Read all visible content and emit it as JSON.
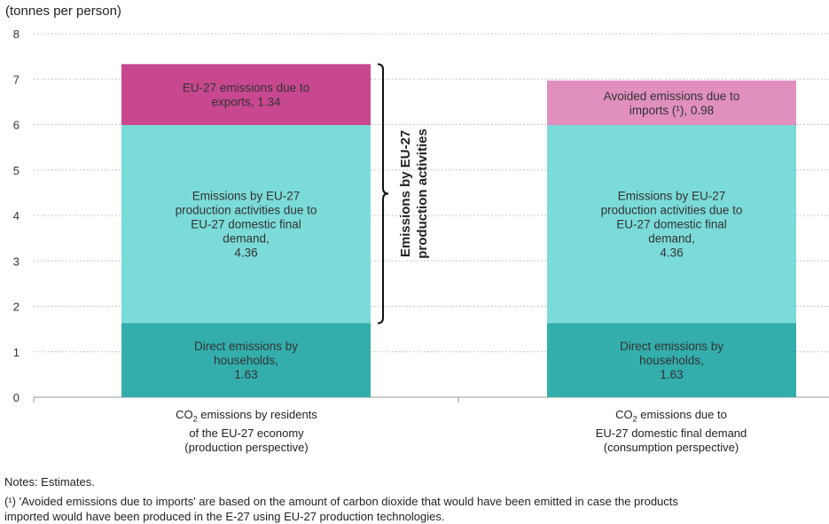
{
  "chart_data": {
    "type": "bar",
    "stacked": true,
    "ylabel": "(tonnes per person)",
    "ylim": [
      0,
      8
    ],
    "yticks": [
      0,
      1,
      2,
      3,
      4,
      5,
      6,
      7,
      8
    ],
    "grid": true,
    "categories": [
      {
        "pre": "CO",
        "sub": "2",
        "lines": [
          " emissions by residents",
          "of the EU-27 economy",
          "(production perspective)"
        ]
      },
      {
        "pre": "CO",
        "sub": "2",
        "lines": [
          " emissions due to",
          "EU-27 domestic final demand",
          "(consumption perspective)"
        ]
      }
    ],
    "bars": [
      [
        {
          "label": [
            "Direct emissions by",
            "households,",
            "1.63"
          ],
          "value": 1.63,
          "color": "#33aeac"
        },
        {
          "label": [
            "Emissions by EU-27",
            "production activities due to",
            "EU-27 domestic final",
            "demand,",
            "4.36"
          ],
          "value": 4.36,
          "color": "#7bdbd9"
        },
        {
          "label": [
            "EU-27 emissions due to",
            "exports, 1.34"
          ],
          "value": 1.34,
          "color": "#c8488f"
        }
      ],
      [
        {
          "label": [
            "Direct emissions by",
            "households,",
            "1.63"
          ],
          "value": 1.63,
          "color": "#33aeac"
        },
        {
          "label": [
            "Emissions by EU-27",
            "production activities due to",
            "EU-27 domestic final",
            "demand,",
            "4.36"
          ],
          "value": 4.36,
          "color": "#7bdbd9"
        },
        {
          "label": [
            "Avoided emissions due to",
            "imports (¹), 0.98"
          ],
          "value": 0.98,
          "color": "#e08fbf"
        }
      ]
    ],
    "annotation": {
      "lines": [
        "Emissions by EU-27",
        "production activities"
      ],
      "from": 1.63,
      "to": 7.33
    }
  },
  "notes": "Notes: Estimates.",
  "footnote": "(¹) 'Avoided emissions due to imports' are based on the amount of carbon dioxide that would have been emitted in case the products imported would have been produced in the E-27 using EU-27 production technologies."
}
